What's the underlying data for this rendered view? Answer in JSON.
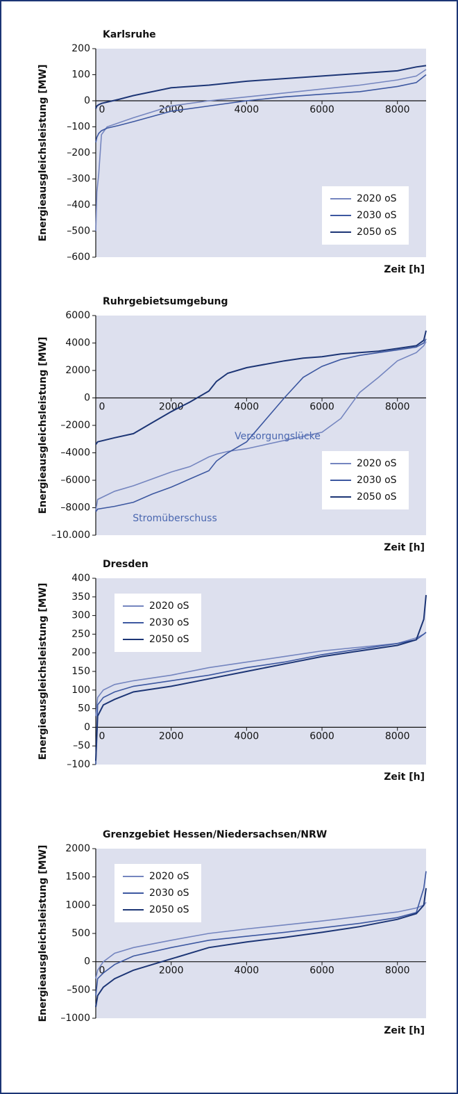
{
  "chart_data": [
    {
      "type": "line",
      "title": "Karlsruhe",
      "ylabel": "Energieausgleichsleistung [MW]",
      "xlabel": "Zeit [h]",
      "x": [
        0,
        30,
        80,
        150,
        300,
        600,
        1000,
        2000,
        3000,
        4000,
        5000,
        6000,
        7000,
        8000,
        8500,
        8760
      ],
      "xlim": [
        0,
        8760
      ],
      "xticks": [
        0,
        2000,
        4000,
        6000,
        8000
      ],
      "ylim": [
        -600,
        200
      ],
      "yticks": [
        200,
        100,
        0,
        {
          "value": -100,
          "label": "–100"
        },
        {
          "value": -200,
          "label": "–200"
        },
        {
          "value": -300,
          "label": "–300"
        },
        {
          "value": -400,
          "label": "–400"
        },
        {
          "value": -500,
          "label": "–500"
        },
        {
          "value": -600,
          "label": "–600"
        }
      ],
      "legend": "lower right",
      "series": [
        {
          "name": "2020 oS",
          "color": "#7485bf",
          "values": [
            -500,
            -350,
            -280,
            -130,
            -100,
            -85,
            -65,
            -20,
            0,
            15,
            30,
            45,
            60,
            80,
            95,
            120
          ]
        },
        {
          "name": "2030 oS",
          "color": "#3c57a0",
          "values": [
            -160,
            -140,
            -125,
            -115,
            -105,
            -95,
            -80,
            -40,
            -20,
            0,
            15,
            25,
            35,
            55,
            70,
            100
          ]
        },
        {
          "name": "2050 oS",
          "color": "#1c3575",
          "values": [
            -30,
            -20,
            -15,
            -10,
            -5,
            5,
            20,
            50,
            60,
            75,
            85,
            95,
            105,
            115,
            130,
            135
          ]
        }
      ]
    },
    {
      "type": "line",
      "title": "Ruhrgebietsumgebung",
      "ylabel": "Energieausgleichsleistung [MW]",
      "xlabel": "Zeit [h]",
      "x": [
        0,
        50,
        500,
        1000,
        1500,
        2000,
        2500,
        3000,
        3200,
        3500,
        4000,
        5000,
        5500,
        6000,
        6500,
        7000,
        7500,
        8000,
        8500,
        8700,
        8760
      ],
      "xlim": [
        0,
        8760
      ],
      "xticks": [
        0,
        2000,
        4000,
        6000,
        8000
      ],
      "ylim": [
        -10000,
        6000
      ],
      "yticks": [
        6000,
        4000,
        2000,
        0,
        {
          "value": -2000,
          "label": "–2000"
        },
        {
          "value": -4000,
          "label": "–4000"
        },
        {
          "value": -6000,
          "label": "–6000"
        },
        {
          "value": -8000,
          "label": "–8000"
        },
        {
          "value": -10000,
          "label": "–10.000"
        }
      ],
      "legend": "lower right",
      "series": [
        {
          "name": "2020 oS",
          "color": "#7485bf",
          "values": [
            -8200,
            -7400,
            -6800,
            -6400,
            -5900,
            -5400,
            -5000,
            -4300,
            -4100,
            -3900,
            -3700,
            -3100,
            -2800,
            -2500,
            -1500,
            400,
            1500,
            2700,
            3300,
            3800,
            4100
          ]
        },
        {
          "name": "2030 oS",
          "color": "#3c57a0",
          "values": [
            -8300,
            -8100,
            -7900,
            -7600,
            -7000,
            -6500,
            -5900,
            -5300,
            -4600,
            -4000,
            -3200,
            0,
            1500,
            2300,
            2800,
            3100,
            3300,
            3500,
            3700,
            4000,
            4300
          ]
        },
        {
          "name": "2050 oS",
          "color": "#1c3575",
          "values": [
            -3400,
            -3200,
            -2900,
            -2600,
            -1800,
            -1000,
            -300,
            500,
            1200,
            1800,
            2200,
            2700,
            2900,
            3000,
            3200,
            3300,
            3400,
            3600,
            3800,
            4200,
            4900
          ]
        }
      ]
    },
    {
      "type": "line",
      "title": "Dresden",
      "ylabel": "Energieausgleichsleistung [MW]",
      "xlabel": "Zeit [h]",
      "x": [
        0,
        50,
        200,
        500,
        1000,
        2000,
        3000,
        4000,
        5000,
        6000,
        7000,
        8000,
        8500,
        8700,
        8760
      ],
      "xlim": [
        0,
        8760
      ],
      "xticks": [
        0,
        2000,
        4000,
        6000,
        8000
      ],
      "ylim": [
        -100,
        400
      ],
      "yticks": [
        400,
        350,
        300,
        250,
        200,
        150,
        100,
        50,
        0,
        {
          "value": -50,
          "label": "–50"
        },
        {
          "value": -100,
          "label": "–100"
        }
      ],
      "legend": "upper left",
      "series": [
        {
          "name": "2020 oS",
          "color": "#7485bf",
          "values": [
            30,
            80,
            100,
            115,
            125,
            140,
            160,
            175,
            190,
            205,
            215,
            225,
            240,
            250,
            255
          ]
        },
        {
          "name": "2030 oS",
          "color": "#3c57a0",
          "values": [
            -100,
            60,
            80,
            95,
            110,
            125,
            140,
            160,
            175,
            195,
            210,
            225,
            235,
            250,
            255
          ]
        },
        {
          "name": "2050 oS",
          "color": "#1c3575",
          "values": [
            -90,
            30,
            60,
            75,
            95,
            110,
            130,
            150,
            170,
            190,
            205,
            220,
            235,
            290,
            355
          ]
        }
      ]
    },
    {
      "type": "line",
      "title": "Grenzgebiet Hessen/Niedersachsen/NRW",
      "ylabel": "Energieausgleichsleistung [MW]",
      "xlabel": "Zeit [h]",
      "x": [
        0,
        50,
        200,
        500,
        1000,
        2000,
        3000,
        4000,
        5000,
        6000,
        7000,
        8000,
        8500,
        8700,
        8760
      ],
      "xlim": [
        0,
        8760
      ],
      "xticks": [
        0,
        2000,
        4000,
        6000,
        8000
      ],
      "ylim": [
        -1000,
        2000
      ],
      "yticks": [
        2000,
        1500,
        1000,
        500,
        0,
        {
          "value": -500,
          "label": "–500"
        },
        {
          "value": -1000,
          "label": "–1000"
        }
      ],
      "legend": "upper left",
      "annotations": [
        "Versorgungslücke",
        "Stromüberschuss"
      ],
      "series": [
        {
          "name": "2020 oS",
          "color": "#7485bf",
          "values": [
            -300,
            -150,
            0,
            150,
            250,
            380,
            500,
            580,
            650,
            720,
            800,
            880,
            950,
            1000,
            1050
          ]
        },
        {
          "name": "2030 oS",
          "color": "#3c57a0",
          "values": [
            -600,
            -300,
            -200,
            -50,
            100,
            250,
            380,
            450,
            520,
            600,
            680,
            780,
            870,
            1300,
            1600
          ]
        },
        {
          "name": "2050 oS",
          "color": "#1c3575",
          "values": [
            -800,
            -600,
            -450,
            -300,
            -150,
            50,
            250,
            350,
            430,
            520,
            620,
            750,
            850,
            1000,
            1300
          ]
        }
      ]
    }
  ]
}
